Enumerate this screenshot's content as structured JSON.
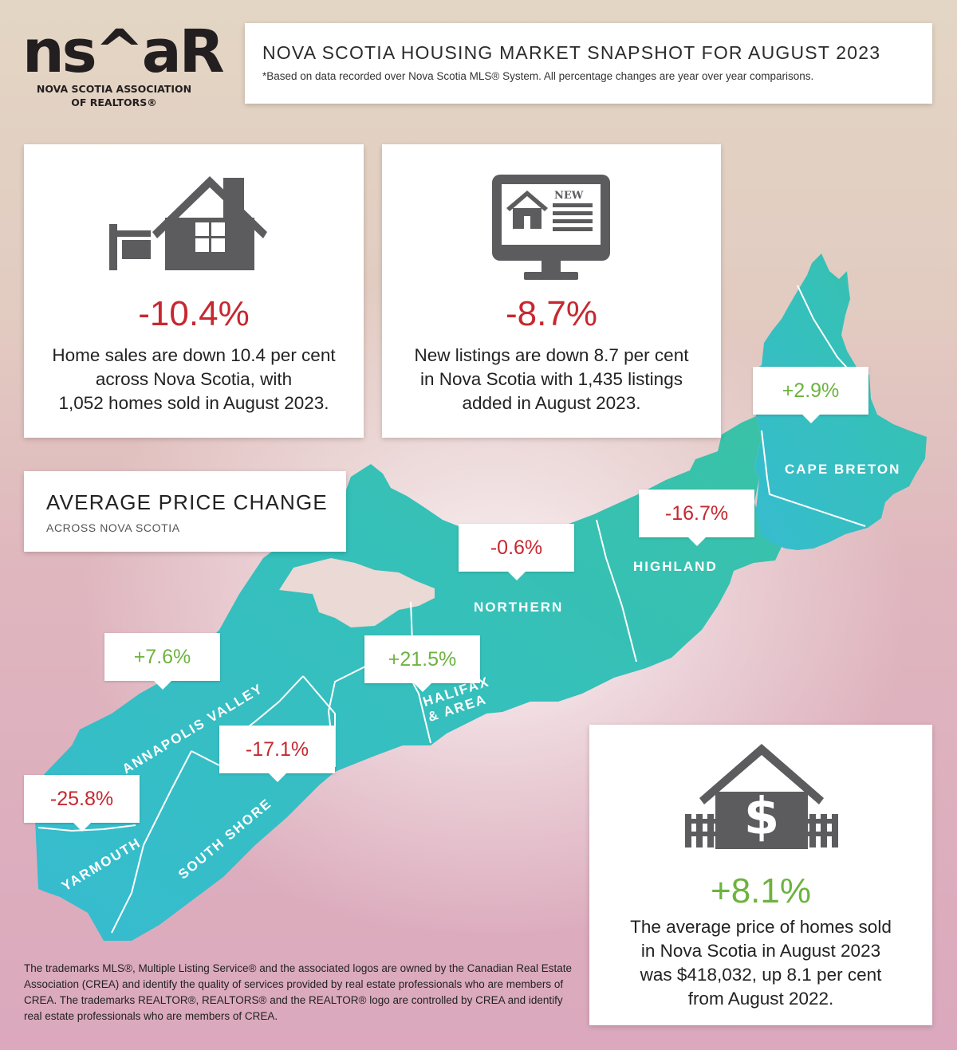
{
  "logo": {
    "mark": "ns^aR",
    "line1": "NOVA SCOTIA ASSOCIATION",
    "line2": "OF REALTORS®"
  },
  "header": {
    "title": "NOVA SCOTIA HOUSING MARKET SNAPSHOT FOR AUGUST 2023",
    "note": "*Based on data recorded over Nova Scotia MLS® System. All percentage changes are year over year comparisons."
  },
  "sales": {
    "percent": "-10.4%",
    "lines": [
      "Home sales are down 10.4 per cent",
      "across Nova Scotia, with",
      "1,052 homes sold in August 2023."
    ]
  },
  "listings": {
    "percent": "-8.7%",
    "icon_badge": "NEW",
    "lines": [
      "New listings are down 8.7 per cent",
      "in Nova Scotia with 1,435 listings",
      "added in August 2023."
    ]
  },
  "average_price_change": {
    "title": "AVERAGE PRICE CHANGE",
    "subtitle": "ACROSS NOVA SCOTIA"
  },
  "regions": [
    {
      "name": "CAPE BRETON",
      "change": "+2.9%",
      "trend": "up"
    },
    {
      "name": "HIGHLAND",
      "change": "-16.7%",
      "trend": "down"
    },
    {
      "name": "NORTHERN",
      "change": "-0.6%",
      "trend": "down"
    },
    {
      "name": "HALIFAX",
      "name2": "& AREA",
      "change": "+21.5%",
      "trend": "up"
    },
    {
      "name": "ANNAPOLIS VALLEY",
      "change": "+7.6%",
      "trend": "up"
    },
    {
      "name": "SOUTH SHORE",
      "change": "-17.1%",
      "trend": "down"
    },
    {
      "name": "YARMOUTH",
      "change": "-25.8%",
      "trend": "down"
    }
  ],
  "avg_price": {
    "percent": "+8.1%",
    "lines": [
      "The average price of homes sold",
      "in Nova Scotia in August 2023",
      "was $418,032, up 8.1 per cent",
      "from August 2022."
    ]
  },
  "footnote": "The trademarks MLS®, Multiple Listing Service® and the associated logos are owned by the Canadian Real Estate Association (CREA) and identify the quality of services provided by real estate professionals who are members of CREA. The trademarks REALTOR®, REALTORS® and the REALTOR® logo are controlled by CREA and identify real estate professionals who are members of CREA.",
  "colors": {
    "map_teal": "#33bfbb",
    "negative": "#c62830",
    "positive": "#6db33f",
    "icon_gray": "#5c5c5e"
  }
}
